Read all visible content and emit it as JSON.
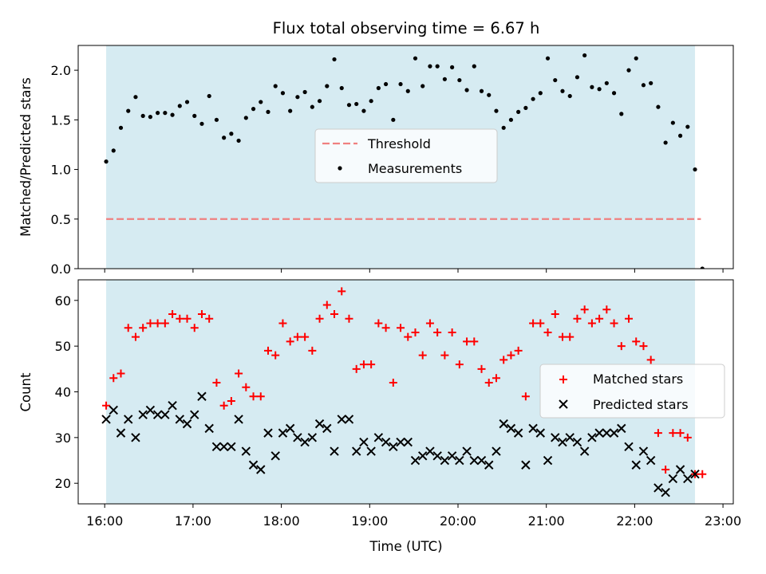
{
  "figure": {
    "title": "Flux total observing time = 6.67 h",
    "xlabel": "Time (UTC)",
    "x_ticks": [
      "16:00",
      "17:00",
      "18:00",
      "19:00",
      "20:00",
      "21:00",
      "22:00",
      "23:00"
    ],
    "colors": {
      "span": "#add8e6",
      "threshold": "#f08080",
      "measurements": "#000000",
      "matched": "#ff0000",
      "predicted": "#000000"
    }
  },
  "chart_data": [
    {
      "type": "scatter",
      "ylabel": "Matched/Predicted stars",
      "xlim": [
        "15:42",
        "23:07"
      ],
      "ylim": [
        0,
        2.25
      ],
      "y_ticks": [
        0.0,
        0.5,
        1.0,
        1.5,
        2.0
      ],
      "observing_span": [
        "16:01",
        "22:41"
      ],
      "threshold": {
        "name": "Threshold",
        "y": 0.5,
        "x_range": [
          "16:01",
          "22:45"
        ]
      },
      "legend": {
        "placement": "center",
        "entries": [
          "Threshold",
          "Measurements"
        ]
      },
      "series": [
        {
          "name": "Measurements",
          "x": [
            "16:01",
            "16:06",
            "16:11",
            "16:16",
            "16:21",
            "16:26",
            "16:31",
            "16:36",
            "16:41",
            "16:46",
            "16:51",
            "16:56",
            "17:01",
            "17:06",
            "17:11",
            "17:16",
            "17:21",
            "17:26",
            "17:31",
            "17:36",
            "17:41",
            "17:46",
            "17:51",
            "17:56",
            "18:01",
            "18:06",
            "18:11",
            "18:16",
            "18:21",
            "18:26",
            "18:31",
            "18:36",
            "18:41",
            "18:46",
            "18:51",
            "18:56",
            "19:01",
            "19:06",
            "19:11",
            "19:16",
            "19:21",
            "19:26",
            "19:31",
            "19:36",
            "19:41",
            "19:46",
            "19:51",
            "19:56",
            "20:01",
            "20:06",
            "20:11",
            "20:16",
            "20:21",
            "20:26",
            "20:31",
            "20:36",
            "20:41",
            "20:46",
            "20:51",
            "20:56",
            "21:01",
            "21:06",
            "21:11",
            "21:16",
            "21:21",
            "21:26",
            "21:31",
            "21:36",
            "21:41",
            "21:46",
            "21:51",
            "21:56",
            "22:01",
            "22:06",
            "22:11",
            "22:16",
            "22:21",
            "22:26",
            "22:31",
            "22:36",
            "22:41",
            "22:46"
          ],
          "y": [
            1.08,
            1.19,
            1.42,
            1.59,
            1.73,
            1.54,
            1.53,
            1.57,
            1.57,
            1.55,
            1.64,
            1.68,
            1.54,
            1.46,
            1.74,
            1.5,
            1.32,
            1.36,
            1.29,
            1.52,
            1.61,
            1.68,
            1.58,
            1.84,
            1.77,
            1.59,
            1.73,
            1.78,
            1.63,
            1.69,
            1.84,
            2.11,
            1.82,
            1.65,
            1.66,
            1.59,
            1.69,
            1.82,
            1.86,
            1.5,
            1.86,
            1.79,
            2.12,
            1.84,
            2.04,
            2.04,
            1.91,
            2.03,
            1.9,
            1.8,
            2.04,
            1.79,
            1.75,
            1.59,
            1.42,
            1.5,
            1.58,
            1.62,
            1.71,
            1.77,
            2.12,
            1.9,
            1.79,
            1.74,
            1.93,
            2.15,
            1.83,
            1.81,
            1.87,
            1.77,
            1.56,
            2.0,
            2.12,
            1.85,
            1.87,
            1.63,
            1.27,
            1.47,
            1.34,
            1.43,
            1.0,
            0.0
          ]
        }
      ]
    },
    {
      "type": "scatter",
      "ylabel": "Count",
      "xlim": [
        "15:42",
        "23:07"
      ],
      "ylim": [
        15.5,
        64.5
      ],
      "y_ticks": [
        20,
        30,
        40,
        50,
        60
      ],
      "observing_span": [
        "16:01",
        "22:41"
      ],
      "legend": {
        "placement": "center right",
        "entries": [
          "Matched stars",
          "Predicted stars"
        ]
      },
      "series": [
        {
          "name": "Matched stars",
          "marker": "+",
          "x": [
            "16:01",
            "16:06",
            "16:11",
            "16:16",
            "16:21",
            "16:26",
            "16:31",
            "16:36",
            "16:41",
            "16:46",
            "16:51",
            "16:56",
            "17:01",
            "17:06",
            "17:11",
            "17:16",
            "17:21",
            "17:26",
            "17:31",
            "17:36",
            "17:41",
            "17:46",
            "17:51",
            "17:56",
            "18:01",
            "18:06",
            "18:11",
            "18:16",
            "18:21",
            "18:26",
            "18:31",
            "18:36",
            "18:41",
            "18:46",
            "18:51",
            "18:56",
            "19:01",
            "19:06",
            "19:11",
            "19:16",
            "19:21",
            "19:26",
            "19:31",
            "19:36",
            "19:41",
            "19:46",
            "19:51",
            "19:56",
            "20:01",
            "20:06",
            "20:11",
            "20:16",
            "20:21",
            "20:26",
            "20:31",
            "20:36",
            "20:41",
            "20:46",
            "20:51",
            "20:56",
            "21:01",
            "21:06",
            "21:11",
            "21:16",
            "21:21",
            "21:26",
            "21:31",
            "21:36",
            "21:41",
            "21:46",
            "21:51",
            "21:56",
            "22:01",
            "22:06",
            "22:11",
            "22:16",
            "22:21",
            "22:26",
            "22:31",
            "22:36",
            "22:41",
            "22:46"
          ],
          "y": [
            37,
            43,
            44,
            54,
            52,
            54,
            55,
            55,
            55,
            57,
            56,
            56,
            54,
            57,
            56,
            42,
            37,
            38,
            44,
            41,
            39,
            39,
            49,
            48,
            55,
            51,
            52,
            52,
            49,
            56,
            59,
            57,
            62,
            56,
            45,
            46,
            46,
            55,
            54,
            42,
            54,
            52,
            53,
            48,
            55,
            53,
            48,
            53,
            46,
            51,
            51,
            45,
            42,
            43,
            47,
            48,
            49,
            39,
            55,
            55,
            53,
            57,
            52,
            52,
            56,
            58,
            55,
            56,
            58,
            55,
            50,
            56,
            51,
            50,
            47,
            31,
            23,
            31,
            31,
            30,
            22,
            22
          ]
        },
        {
          "name": "Predicted stars",
          "marker": "x",
          "x": [
            "16:01",
            "16:06",
            "16:11",
            "16:16",
            "16:21",
            "16:26",
            "16:31",
            "16:36",
            "16:41",
            "16:46",
            "16:51",
            "16:56",
            "17:01",
            "17:06",
            "17:11",
            "17:16",
            "17:21",
            "17:26",
            "17:31",
            "17:36",
            "17:41",
            "17:46",
            "17:51",
            "17:56",
            "18:01",
            "18:06",
            "18:11",
            "18:16",
            "18:21",
            "18:26",
            "18:31",
            "18:36",
            "18:41",
            "18:46",
            "18:51",
            "18:56",
            "19:01",
            "19:06",
            "19:11",
            "19:16",
            "19:21",
            "19:26",
            "19:31",
            "19:36",
            "19:41",
            "19:46",
            "19:51",
            "19:56",
            "20:01",
            "20:06",
            "20:11",
            "20:16",
            "20:21",
            "20:26",
            "20:31",
            "20:36",
            "20:41",
            "20:46",
            "20:51",
            "20:56",
            "21:01",
            "21:06",
            "21:11",
            "21:16",
            "21:21",
            "21:26",
            "21:31",
            "21:36",
            "21:41",
            "21:46",
            "21:51",
            "21:56",
            "22:01",
            "22:06",
            "22:11",
            "22:16",
            "22:21",
            "22:26",
            "22:31",
            "22:36",
            "22:41"
          ],
          "y": [
            34,
            36,
            31,
            34,
            30,
            35,
            36,
            35,
            35,
            37,
            34,
            33,
            35,
            39,
            32,
            28,
            28,
            28,
            34,
            27,
            24,
            23,
            31,
            26,
            31,
            32,
            30,
            29,
            30,
            33,
            32,
            27,
            34,
            34,
            27,
            29,
            27,
            30,
            29,
            28,
            29,
            29,
            25,
            26,
            27,
            26,
            25,
            26,
            25,
            27,
            25,
            25,
            24,
            27,
            33,
            32,
            31,
            24,
            32,
            31,
            25,
            30,
            29,
            30,
            29,
            27,
            30,
            31,
            31,
            31,
            32,
            28,
            24,
            27,
            25,
            19,
            18,
            21,
            23,
            21,
            22
          ]
        }
      ]
    }
  ]
}
